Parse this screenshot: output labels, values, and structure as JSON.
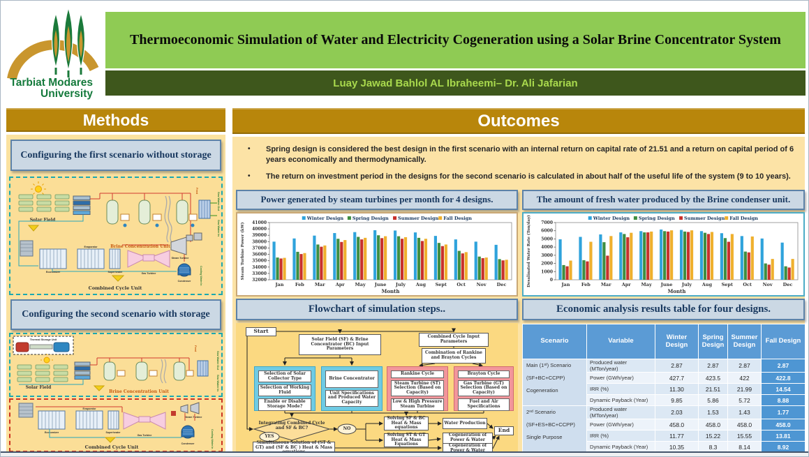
{
  "header": {
    "university": "Tarbiat Modares University",
    "title": "Thermoeconomic Simulation of Water and Electricity Cogeneration using a Solar Brine Concentrator System",
    "authors": "Luay Jawad Bahlol  AL Ibraheemi– Dr. Ali Jafarian"
  },
  "methods": {
    "section_title": "Methods",
    "scenario1_title": "Configuring the first scenario without storage",
    "scenario2_title": "Configuring the second scenario with storage",
    "diagram_labels": {
      "solar_field": "Solar Field",
      "brine_unit": "Brine Concentration Unit",
      "combined_cycle": "Combined Cycle Unit",
      "thermal_storage": "Thermal Storage Unit",
      "gas_turbine": "Gas Turbine",
      "steam_turbine": "Steam Turbine",
      "condenser": "Condenser",
      "economizer": "Economizer",
      "evaporator": "Evaporator",
      "superheater": "Superheater",
      "sea_water_in": "Sea Water In",
      "sea_water_out": "Sea Water Out",
      "cooling_water_in": "Cooling Water In",
      "feed": "Feed"
    }
  },
  "outcomes": {
    "section_title": "Outcomes",
    "bullets": [
      "Spring design is considered the best design in the first scenario with an internal return on capital rate of 21.51 and a return on capital period of 6 years economically and thermodynamically.",
      "The return on investment period in the designs for the second scenario is calculated in about half of the useful life of the system (9 to 10 years)."
    ],
    "chart1_title": "Power generated by steam turbines per month for 4 designs.",
    "chart2_title": "The amount of fresh water produced by the Brine condenser unit.",
    "flowchart_title": "Flowchart of simulation steps..",
    "table_title": "Economic analysis results table for four designs."
  },
  "chart_data": [
    {
      "type": "bar",
      "title": "Power generated by steam turbines per month for 4 designs.",
      "categories": [
        "Jan",
        "Feb",
        "Mar",
        "Apr",
        "May",
        "June",
        "July",
        "Aug",
        "Sept",
        "Oct",
        "Nov",
        "Dec"
      ],
      "series": [
        {
          "name": "Winter Design",
          "color": "#2FA3DC",
          "values": [
            38000,
            38500,
            38950,
            39350,
            39500,
            39800,
            39750,
            39450,
            38900,
            38350,
            38000,
            37500
          ]
        },
        {
          "name": "Spring Design",
          "color": "#3E8E41",
          "values": [
            35500,
            36400,
            37550,
            38450,
            38750,
            39000,
            38850,
            38600,
            37800,
            36550,
            35650,
            35250
          ]
        },
        {
          "name": "Summer Design",
          "color": "#C8312B",
          "values": [
            35350,
            36050,
            37200,
            37950,
            38350,
            38550,
            38450,
            38100,
            37300,
            36150,
            35400,
            35050
          ]
        },
        {
          "name": "Fall Design",
          "color": "#EFB02E",
          "values": [
            35450,
            36200,
            37400,
            38250,
            38600,
            38850,
            38700,
            38450,
            37550,
            36350,
            35500,
            35150
          ]
        }
      ],
      "xlabel": "Month",
      "ylabel": "Steam Turbine Power (kW)",
      "ylim": [
        32000,
        41000
      ],
      "ytick": 1000,
      "grid": false,
      "legend_position": "top"
    },
    {
      "type": "bar",
      "title": "The amount of fresh water produced by the Brine condenser unit.",
      "categories": [
        "Jan",
        "Feb",
        "Mar",
        "Apr",
        "May",
        "June",
        "July",
        "Aug",
        "Sept",
        "Oct",
        "Nov",
        "Dec"
      ],
      "series": [
        {
          "name": "Winter Design",
          "color": "#2FA3DC",
          "values": [
            4950,
            5250,
            5550,
            5800,
            5950,
            6150,
            6100,
            5950,
            5700,
            5350,
            5050,
            4550
          ]
        },
        {
          "name": "Spring Design",
          "color": "#3E8E41",
          "values": [
            1800,
            2400,
            4600,
            5600,
            5800,
            5950,
            5900,
            5750,
            5100,
            3450,
            2000,
            1650
          ]
        },
        {
          "name": "Summer Design",
          "color": "#C8312B",
          "values": [
            1650,
            2250,
            2950,
            5200,
            5800,
            5900,
            5850,
            5600,
            4650,
            3350,
            1850,
            1500
          ]
        },
        {
          "name": "Fall Design",
          "color": "#EFB02E",
          "values": [
            2350,
            4650,
            5350,
            5750,
            5900,
            6050,
            6050,
            5850,
            5600,
            5300,
            2550,
            2550
          ]
        }
      ],
      "xlabel": "Month",
      "ylabel": "Desalinated Water Rate (Ton/day)",
      "ylim": [
        0,
        7000
      ],
      "ytick": 1000,
      "grid": false,
      "legend_position": "top"
    }
  ],
  "flowchart": {
    "nodes": {
      "start": "Start",
      "sf_params": "Solar Field (SF) & Brine Concentrator (BC) Input Parameters",
      "cc_params": "Combined Cycle Input Parameters",
      "combination": "Combination of Rankine and Brayton Cycles",
      "sel_collector": "Selection of Solar Collector Type",
      "sel_fluid": "Selection of Working Fluid",
      "storage_mode": "Enable or Disable Storage Mode?",
      "brine_conc": "Brine Concentrator",
      "unit_specs": "Unit Specifications and Produced Water Capacity",
      "rankine": "Rankine Cycle",
      "st_selection": "Steam Turbine (ST) Selection (Based on Capacity)",
      "lp_hp": "Low & High Pressure Steam Turbine",
      "brayton": "Brayton Cycle",
      "gt_selection": "Gas Turbine (GT) Selection (Based on Capacity)",
      "fuel_air": "Fuel and Air Specifications",
      "decision": "Integrating Combined Cycle and SF & BC?",
      "no": "NO",
      "yes": "YES",
      "solve_sfbc": "Solving SF & BC Heat & Mass equations",
      "solve_stgt": "Solving ST & GT Heat & Mass Equations",
      "water_prod": "Water Production",
      "cogen1": "Cogeneration of Power & Water",
      "sim_solution": "Simultaneous Solution of (ST & GT) and (SF & BC ) Heat & Mass equations",
      "cogen2": "Cogeneration of Power & Water",
      "end": "End"
    }
  },
  "table": {
    "headers": [
      "Scenario",
      "Variable",
      "Winter Design",
      "Spring Design",
      "Summer Design",
      "Fall Design"
    ],
    "groups": [
      {
        "scenario_lines": [
          "Main (1ˢᵗ) Scenario",
          "(SF+BC+CCPP)",
          "Cogeneration"
        ],
        "rows": [
          {
            "variable": "Produced water (MTon/year)",
            "values": [
              "2.87",
              "2.87",
              "2.87",
              "2.87"
            ]
          },
          {
            "variable": "Power (GWh/year)",
            "values": [
              "427.7",
              "423.5",
              "422",
              "422.8"
            ]
          },
          {
            "variable": "IRR (%)",
            "values": [
              "11.30",
              "21.51",
              "21.99",
              "14.54"
            ]
          },
          {
            "variable": "Dynamic Payback (Year)",
            "values": [
              "9.85",
              "5.86",
              "5.72",
              "8.88"
            ]
          }
        ]
      },
      {
        "scenario_lines": [
          "2ⁿᵈ Scenario",
          "(SF+ES+BC+CCPP)",
          "Single Purpose"
        ],
        "rows": [
          {
            "variable": "Produced water (MTon/year)",
            "values": [
              "2.03",
              "1.53",
              "1.43",
              "1.77"
            ]
          },
          {
            "variable": "Power (GWh/year)",
            "values": [
              "458.0",
              "458.0",
              "458.0",
              "458.0"
            ]
          },
          {
            "variable": "IRR (%)",
            "values": [
              "11.77",
              "15.22",
              "15.55",
              "13.81"
            ]
          },
          {
            "variable": "Dynamic Payback (Year)",
            "values": [
              "10.35",
              "8.3",
              "8.14",
              "8.92"
            ]
          }
        ]
      }
    ]
  },
  "colors": {
    "accent_gold": "#B8860B",
    "title_green": "#8FCB54",
    "authors_bg": "#3E571C",
    "authors_text": "#A9D94D",
    "panel_cream": "#FBE2A0",
    "header_box_bg": "#CBD8E4",
    "header_box_text": "#17375E",
    "table_header_blue": "#5B9BD5",
    "table_fall_blue": "#4E96D3",
    "winter": "#2FA3DC",
    "spring": "#3E8E41",
    "summer": "#C8312B",
    "fall": "#EFB02E"
  }
}
